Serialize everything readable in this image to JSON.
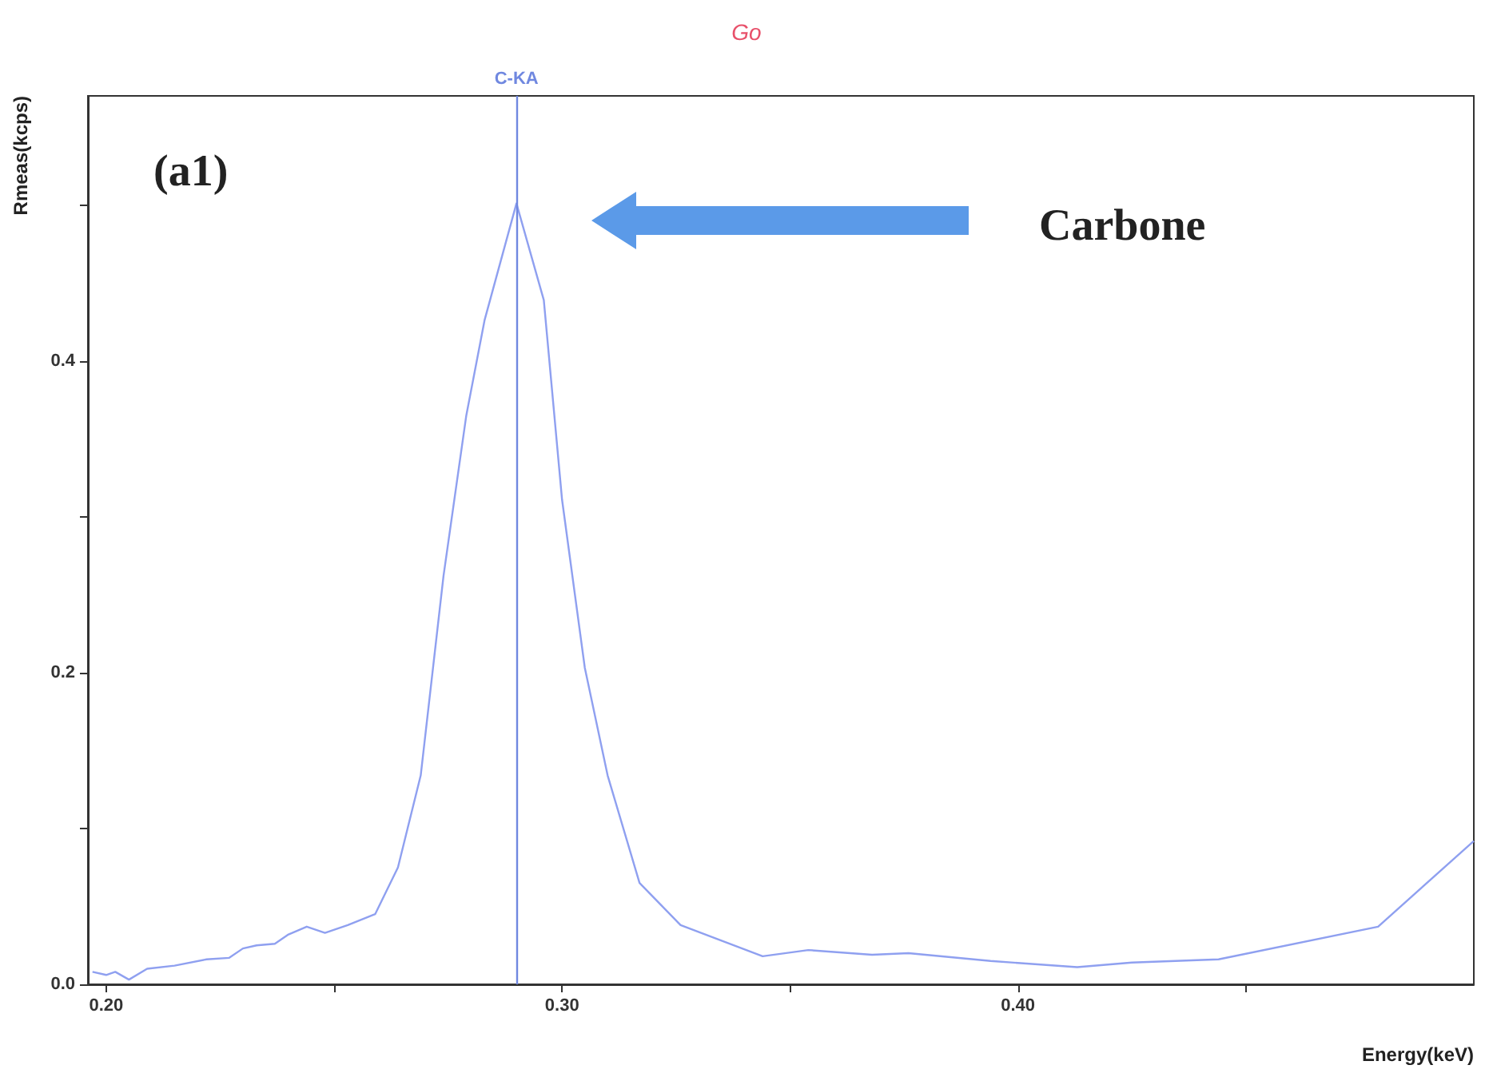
{
  "chart_data": {
    "type": "line",
    "title": "Go",
    "xlabel": "Energy(keV)",
    "ylabel": "Rmeas(kcps)",
    "annotations": [
      "(a1)",
      "Carbone"
    ],
    "x": [
      0.197,
      0.2,
      0.202,
      0.205,
      0.209,
      0.215,
      0.222,
      0.227,
      0.23,
      0.233,
      0.237,
      0.24,
      0.244,
      0.248,
      0.253,
      0.259,
      0.264,
      0.269,
      0.274,
      0.279,
      0.283,
      0.29,
      0.296,
      0.3,
      0.305,
      0.31,
      0.317,
      0.326,
      0.344,
      0.354,
      0.368,
      0.376,
      0.394,
      0.413,
      0.425,
      0.444,
      0.479,
      0.5
    ],
    "series": [
      {
        "color": "#8fa0f0",
        "values": [
          0.008,
          0.006,
          0.008,
          0.003,
          0.01,
          0.012,
          0.016,
          0.017,
          0.023,
          0.025,
          0.026,
          0.032,
          0.037,
          0.033,
          0.038,
          0.045,
          0.075,
          0.134,
          0.262,
          0.365,
          0.426,
          0.501,
          0.439,
          0.311,
          0.203,
          0.134,
          0.065,
          0.038,
          0.018,
          0.022,
          0.019,
          0.02,
          0.015,
          0.011,
          0.014,
          0.016,
          0.037,
          0.092
        ]
      }
    ],
    "xlim": [
      0.196,
      0.5
    ],
    "ylim": [
      0,
      0.57
    ],
    "xticks": [
      {
        "value": 0.2,
        "label": "0.20"
      },
      {
        "value": 0.25,
        "label": null
      },
      {
        "value": 0.3,
        "label": "0.30"
      },
      {
        "value": 0.35,
        "label": null
      },
      {
        "value": 0.4,
        "label": "0.40"
      },
      {
        "value": 0.45,
        "label": null
      }
    ],
    "yticks": [
      {
        "value": 0,
        "label": "0.0"
      },
      {
        "value": 0.1,
        "label": null
      },
      {
        "value": 0.2,
        "label": "0.2"
      },
      {
        "value": 0.3,
        "label": null
      },
      {
        "value": 0.4,
        "label": "0.4"
      },
      {
        "value": 0.5,
        "label": null
      }
    ],
    "ref_lines": [
      {
        "axis": "x",
        "value": 0.289,
        "label": "C-KA",
        "color": "#7088e0"
      }
    ],
    "grid": false,
    "marker": "none",
    "line_style": "solid"
  }
}
